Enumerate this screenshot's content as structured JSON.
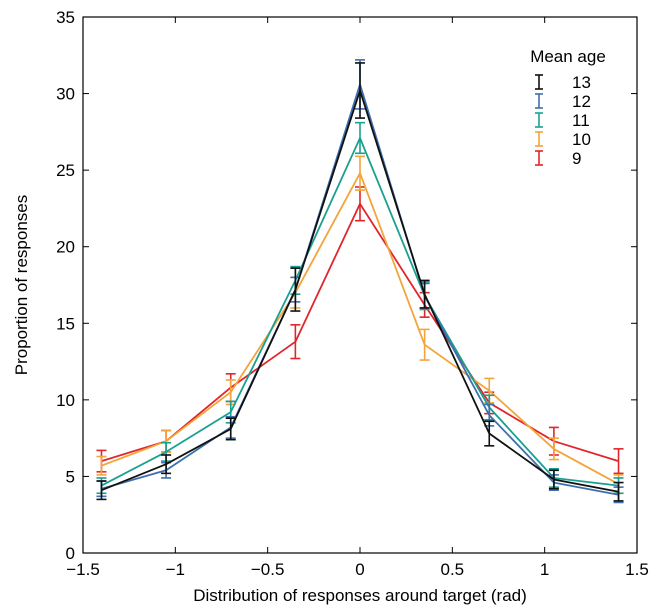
{
  "chart_data": {
    "type": "line",
    "title": "",
    "xlabel": "Distribution of responses around target (rad)",
    "ylabel": "Proportion of responses",
    "xlim": [
      -1.5,
      1.5
    ],
    "ylim": [
      0,
      35
    ],
    "xticks": [
      -1.5,
      -1,
      -0.5,
      0,
      0.5,
      1,
      1.5
    ],
    "xtick_labels": [
      "−1.5",
      "−1",
      "−0.5",
      "0",
      "0.5",
      "1",
      "1.5"
    ],
    "yticks": [
      0,
      5,
      10,
      15,
      20,
      25,
      30,
      35
    ],
    "ytick_labels": [
      "0",
      "5",
      "10",
      "15",
      "20",
      "25",
      "30",
      "35"
    ],
    "grid": false,
    "legend_title": "Mean age",
    "legend_position": "top-right",
    "x": [
      -1.4,
      -1.05,
      -0.7,
      -0.35,
      0,
      0.35,
      0.7,
      1.05,
      1.4
    ],
    "series": [
      {
        "name": "9",
        "color": "#e0262b",
        "values": [
          6.0,
          7.3,
          10.8,
          13.8,
          22.8,
          16.2,
          9.8,
          7.3,
          6.0
        ],
        "errors": [
          0.7,
          0.7,
          0.9,
          1.1,
          1.1,
          0.8,
          0.7,
          0.9,
          0.8
        ]
      },
      {
        "name": "10",
        "color": "#f3a43a",
        "values": [
          5.7,
          7.3,
          10.5,
          17.0,
          24.8,
          13.6,
          10.6,
          6.8,
          4.5
        ],
        "errors": [
          0.6,
          0.7,
          0.8,
          1.0,
          1.1,
          1.0,
          0.8,
          0.7,
          0.6
        ]
      },
      {
        "name": "11",
        "color": "#1aa08f",
        "values": [
          4.4,
          6.6,
          9.2,
          17.8,
          27.1,
          16.8,
          9.5,
          4.9,
          4.4
        ],
        "errors": [
          0.5,
          0.6,
          0.7,
          0.9,
          1.0,
          0.9,
          0.8,
          0.6,
          0.5
        ]
      },
      {
        "name": "12",
        "color": "#3d6fb0",
        "values": [
          4.2,
          5.4,
          8.2,
          17.2,
          30.6,
          16.8,
          9.0,
          4.6,
          3.8
        ],
        "errors": [
          0.5,
          0.5,
          0.7,
          0.8,
          1.6,
          0.8,
          0.7,
          0.5,
          0.5
        ]
      },
      {
        "name": "13",
        "color": "#111111",
        "values": [
          4.1,
          5.8,
          8.1,
          17.2,
          30.2,
          16.9,
          7.8,
          4.8,
          4.0
        ],
        "errors": [
          0.6,
          0.6,
          0.7,
          1.4,
          1.8,
          0.9,
          0.8,
          0.6,
          0.6
        ]
      }
    ]
  }
}
